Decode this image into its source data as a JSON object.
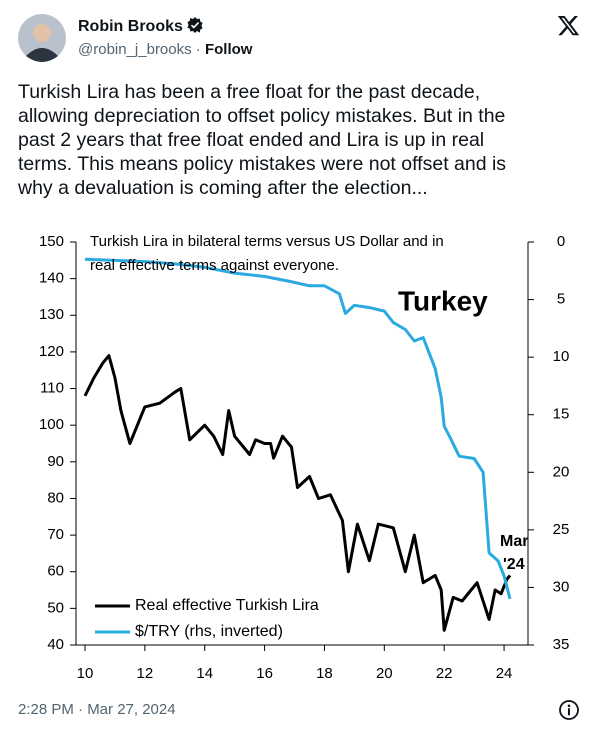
{
  "header": {
    "name": "Robin Brooks",
    "handle": "@robin_j_brooks",
    "separator": "·",
    "follow": "Follow"
  },
  "tweet": {
    "lines": [
      "Turkish Lira has been a free float for the past decade,",
      "allowing depreciation to offset policy mistakes. But in the",
      "past 2 years that free float ended and Lira is up in real",
      "terms. This means policy mistakes were not offset and is",
      "why a devaluation is coming after the election..."
    ]
  },
  "chart_data": {
    "type": "line",
    "title": [
      "Turkish Lira in bilateral terms versus US Dollar and in",
      "real effective terms against everyone."
    ],
    "annotations": [
      "Turkey",
      "Mar",
      "'24"
    ],
    "xlim": [
      9.7,
      24.8
    ],
    "xticks": [
      10,
      12,
      14,
      16,
      18,
      20,
      22,
      24
    ],
    "ylim": [
      40,
      150
    ],
    "yticks": [
      40,
      50,
      60,
      70,
      80,
      90,
      100,
      110,
      120,
      130,
      140,
      150
    ],
    "y2lim": [
      0,
      35
    ],
    "y2ticks": [
      0,
      5,
      10,
      15,
      20,
      25,
      30,
      35
    ],
    "y2_inverted": true,
    "legend": "lower left",
    "series": [
      {
        "name": "Real effective Turkish Lira",
        "color": "#000000",
        "x": [
          10.0,
          10.3,
          10.6,
          10.8,
          11.0,
          11.2,
          11.5,
          11.7,
          12.0,
          12.5,
          13.0,
          13.2,
          13.5,
          14.0,
          14.3,
          14.6,
          14.8,
          15.0,
          15.5,
          15.7,
          16.0,
          16.2,
          16.3,
          16.6,
          16.9,
          17.1,
          17.5,
          17.8,
          18.2,
          18.6,
          18.8,
          19.1,
          19.5,
          19.8,
          20.3,
          20.7,
          21.0,
          21.3,
          21.7,
          21.9,
          22.0,
          22.3,
          22.6,
          22.9,
          23.1,
          23.3,
          23.5,
          23.7,
          23.9,
          24.1,
          24.2
        ],
        "values": [
          108,
          113,
          117,
          119,
          113,
          104,
          95,
          99,
          105,
          106,
          109,
          110,
          96,
          100,
          97,
          92,
          104,
          97,
          92,
          96,
          95,
          95,
          91,
          97,
          94,
          83,
          86,
          80,
          81,
          74,
          60,
          73,
          63,
          73,
          72,
          60,
          70,
          57,
          59,
          55,
          44,
          53,
          52,
          55,
          57,
          52,
          47,
          55,
          54,
          58,
          59
        ]
      },
      {
        "name": "$/TRY (rhs, inverted)",
        "color": "#29abe2",
        "axis": "y2",
        "x": [
          10.0,
          11.0,
          12.0,
          13.0,
          14.0,
          15.0,
          16.0,
          16.8,
          17.5,
          18.0,
          18.5,
          18.7,
          19.0,
          19.5,
          20.0,
          20.3,
          20.7,
          21.0,
          21.3,
          21.7,
          21.9,
          22.0,
          22.2,
          22.5,
          23.0,
          23.3,
          23.5,
          23.8,
          24.0,
          24.2
        ],
        "values": [
          1.5,
          1.6,
          1.7,
          1.9,
          2.2,
          2.7,
          3.0,
          3.4,
          3.8,
          3.8,
          4.5,
          6.2,
          5.5,
          5.7,
          6.0,
          7.0,
          7.6,
          8.6,
          8.3,
          11,
          13.5,
          16,
          17,
          18.6,
          18.8,
          20,
          27,
          27.7,
          29,
          31
        ]
      }
    ]
  },
  "footer": {
    "timestamp": "2:28 PM · Mar 27, 2024"
  }
}
